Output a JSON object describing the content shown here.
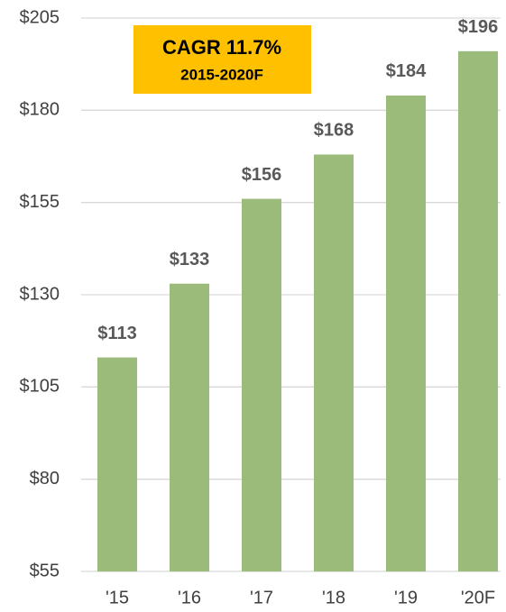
{
  "chart_data": {
    "type": "bar",
    "annotations": [
      "CAGR 11.7%",
      "2015-2020F"
    ],
    "categories": [
      "'15",
      "'16",
      "'17",
      "'18",
      "'19",
      "'20F"
    ],
    "values": [
      113,
      133,
      156,
      168,
      184,
      196
    ],
    "value_labels": [
      "$113",
      "$133",
      "$156",
      "$168",
      "$184",
      "$196"
    ],
    "color": "#9bbb7b",
    "ylim": [
      55,
      205
    ],
    "yticks": [
      {
        "value": 55,
        "label": "$55"
      },
      {
        "value": 80,
        "label": "$80"
      },
      {
        "value": 105,
        "label": "$105"
      },
      {
        "value": 130,
        "label": "$130"
      },
      {
        "value": 155,
        "label": "$155"
      },
      {
        "value": 180,
        "label": "$180"
      },
      {
        "value": 205,
        "label": "$205"
      }
    ],
    "grid": true
  }
}
